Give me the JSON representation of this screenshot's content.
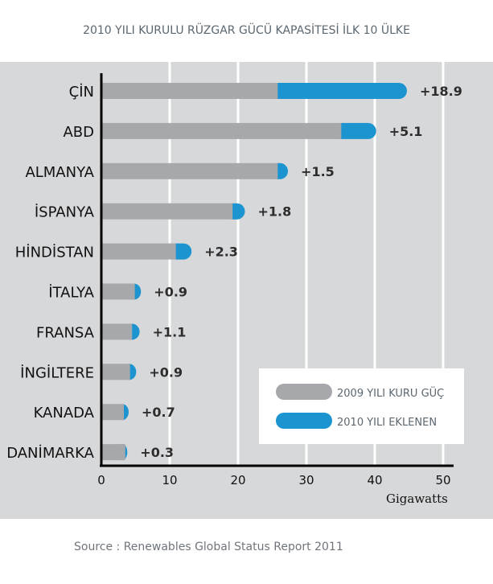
{
  "header": {
    "title": "2010 YILI KURULU RÜZGAR GÜCÜ KAPASİTESİ İLK 10 ÜLKE"
  },
  "footer": {
    "source": "Source : Renewables Global Status Report 2011"
  },
  "colors": {
    "series_2009": "#a6a8ab",
    "series_2010": "#1b94cf",
    "panel_bg": "#d7d8da",
    "gridline": "#ffffff",
    "axis": "#000000"
  },
  "chart_data": {
    "type": "bar",
    "orientation": "horizontal",
    "stacked": true,
    "categories": [
      "ÇİN",
      "ABD",
      "ALMANYA",
      "İSPANYA",
      "HİNDİSTAN",
      "İTALYA",
      "FRANSA",
      "İNGİLTERE",
      "KANADA",
      "DANİMARKA"
    ],
    "series": [
      {
        "name": "2009 YILI KURU GÜÇ",
        "values": [
          25.8,
          35.1,
          25.8,
          19.2,
          10.9,
          4.9,
          4.5,
          4.2,
          3.3,
          3.5
        ]
      },
      {
        "name": "2010 YILI EKLENEN",
        "values": [
          18.9,
          5.1,
          1.5,
          1.8,
          2.3,
          0.9,
          1.1,
          0.9,
          0.7,
          0.3
        ]
      }
    ],
    "data_labels": [
      "+18.9",
      "+5.1",
      "+1.5",
      "+1.8",
      "+2.3",
      "+0.9",
      "+1.1",
      "+0.9",
      "+0.7",
      "+0.3"
    ],
    "x_ticks": [
      0,
      10,
      20,
      30,
      40,
      50
    ],
    "xlim": [
      0,
      51
    ],
    "xlabel": "Gigawatts",
    "ylabel": "",
    "grid": "vertical",
    "legend_position": "bottom-right"
  }
}
